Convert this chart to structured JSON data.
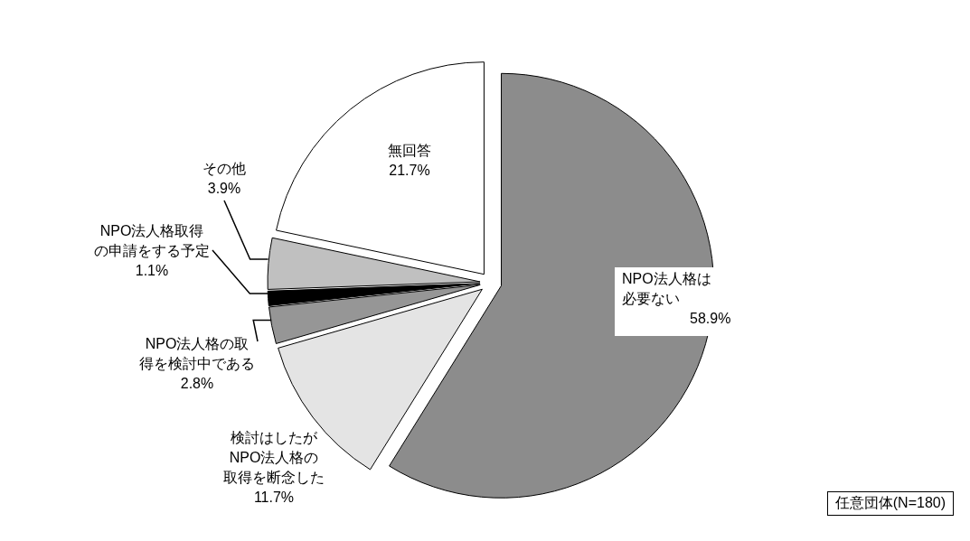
{
  "chart_data": {
    "type": "pie",
    "categories": [
      "NPO法人格は必要ない",
      "検討はしたがNPO法人格の取得を断念した",
      "NPO法人格の取得を検討中である",
      "NPO法人格取得の申請をする予定",
      "その他",
      "無回答"
    ],
    "values": [
      58.9,
      11.7,
      2.8,
      1.1,
      3.9,
      21.7
    ],
    "value_labels": [
      "58.9%",
      "11.7%",
      "2.8%",
      "1.1%",
      "3.9%",
      "21.7%"
    ],
    "colors": [
      "#8c8c8c",
      "#e4e4e4",
      "#969696",
      "#000000",
      "#c0c0c0",
      "#ffffff"
    ],
    "annotations": [
      "任意団体(N=180)"
    ]
  }
}
